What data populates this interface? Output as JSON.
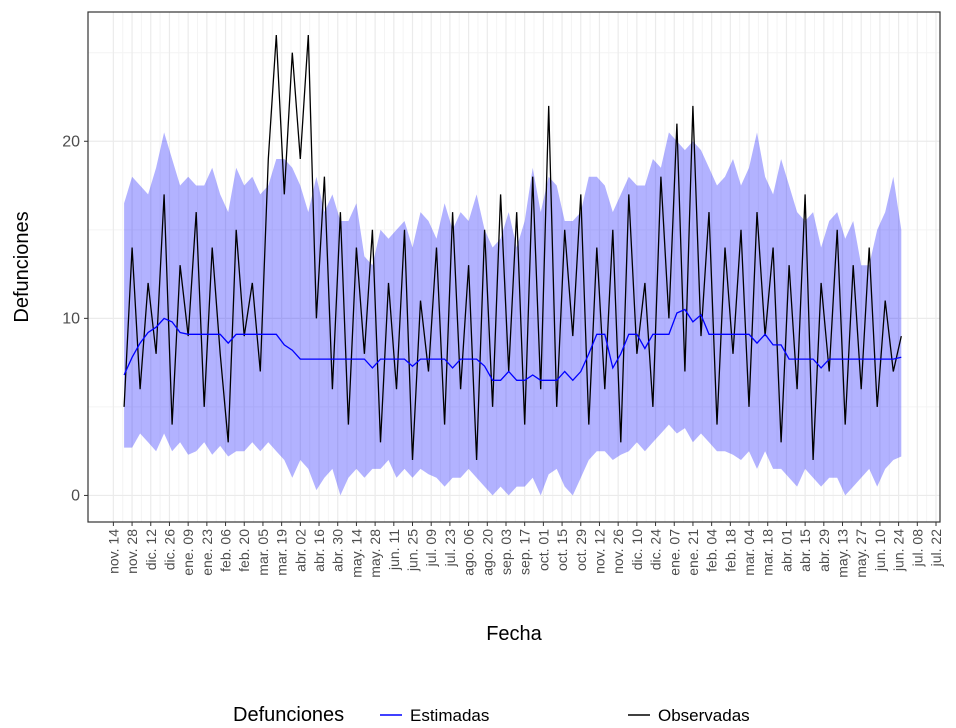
{
  "chart_data": {
    "type": "line",
    "x_label": "Fecha",
    "y_label": "Defunciones",
    "legend_title": "Defunciones",
    "legend_position": "bottom",
    "grid": true,
    "xlim": [
      -19,
      619
    ],
    "ylim": [
      -1.5,
      27.3
    ],
    "xticks": [
      {
        "value": 0,
        "label": "nov. 14"
      },
      {
        "value": 14,
        "label": "nov. 28"
      },
      {
        "value": 28,
        "label": "dic. 12"
      },
      {
        "value": 42,
        "label": "dic. 26"
      },
      {
        "value": 56,
        "label": "ene. 09"
      },
      {
        "value": 70,
        "label": "ene. 23"
      },
      {
        "value": 84,
        "label": "feb. 06"
      },
      {
        "value": 98,
        "label": "feb. 20"
      },
      {
        "value": 112,
        "label": "mar. 05"
      },
      {
        "value": 126,
        "label": "mar. 19"
      },
      {
        "value": 140,
        "label": "abr. 02"
      },
      {
        "value": 154,
        "label": "abr. 16"
      },
      {
        "value": 168,
        "label": "abr. 30"
      },
      {
        "value": 182,
        "label": "may. 14"
      },
      {
        "value": 196,
        "label": "may. 28"
      },
      {
        "value": 210,
        "label": "jun. 11"
      },
      {
        "value": 224,
        "label": "jun. 25"
      },
      {
        "value": 238,
        "label": "jul. 09"
      },
      {
        "value": 252,
        "label": "jul. 23"
      },
      {
        "value": 266,
        "label": "ago. 06"
      },
      {
        "value": 280,
        "label": "ago. 20"
      },
      {
        "value": 294,
        "label": "sep. 03"
      },
      {
        "value": 308,
        "label": "sep. 17"
      },
      {
        "value": 322,
        "label": "oct. 01"
      },
      {
        "value": 336,
        "label": "oct. 15"
      },
      {
        "value": 350,
        "label": "oct. 29"
      },
      {
        "value": 364,
        "label": "nov. 12"
      },
      {
        "value": 378,
        "label": "nov. 26"
      },
      {
        "value": 392,
        "label": "dic. 10"
      },
      {
        "value": 406,
        "label": "dic. 24"
      },
      {
        "value": 420,
        "label": "ene. 07"
      },
      {
        "value": 434,
        "label": "ene. 21"
      },
      {
        "value": 448,
        "label": "feb. 04"
      },
      {
        "value": 462,
        "label": "feb. 18"
      },
      {
        "value": 476,
        "label": "mar. 04"
      },
      {
        "value": 490,
        "label": "mar. 18"
      },
      {
        "value": 504,
        "label": "abr. 01"
      },
      {
        "value": 518,
        "label": "abr. 15"
      },
      {
        "value": 532,
        "label": "abr. 29"
      },
      {
        "value": 546,
        "label": "may. 13"
      },
      {
        "value": 560,
        "label": "may. 27"
      },
      {
        "value": 574,
        "label": "jun. 10"
      },
      {
        "value": 588,
        "label": "jun. 24"
      },
      {
        "value": 602,
        "label": "jul. 08"
      },
      {
        "value": 616,
        "label": "jul. 22"
      }
    ],
    "yticks": [
      0,
      10,
      20
    ],
    "y_minor_ticks": [
      5,
      15,
      25
    ],
    "x": [
      8,
      14,
      20,
      26,
      32,
      38,
      44,
      50,
      56,
      62,
      68,
      74,
      80,
      86,
      92,
      98,
      104,
      110,
      116,
      122,
      128,
      134,
      140,
      146,
      152,
      158,
      164,
      170,
      176,
      182,
      188,
      194,
      200,
      206,
      212,
      218,
      224,
      230,
      236,
      242,
      248,
      254,
      260,
      266,
      272,
      278,
      284,
      290,
      296,
      302,
      308,
      314,
      320,
      326,
      332,
      338,
      344,
      350,
      356,
      362,
      368,
      374,
      380,
      386,
      392,
      398,
      404,
      410,
      416,
      422,
      428,
      434,
      440,
      446,
      452,
      458,
      464,
      470,
      476,
      482,
      488,
      494,
      500,
      506,
      512,
      518,
      524,
      530,
      536,
      542,
      548,
      554,
      560,
      566,
      572,
      578,
      584,
      590
    ],
    "band": {
      "color": "#0000ff",
      "opacity": 0.3,
      "lower": [
        2.7,
        2.7,
        3.5,
        3,
        2.5,
        3.5,
        2.5,
        3,
        2.3,
        2.5,
        3,
        2.3,
        2.8,
        2.2,
        2.5,
        2.5,
        3,
        2.5,
        3,
        2.5,
        2,
        1,
        2,
        1.5,
        0.3,
        1,
        1.5,
        0,
        1,
        1.5,
        1,
        1.5,
        1.5,
        2,
        1,
        1.5,
        1,
        1.5,
        1.2,
        1,
        0.5,
        1,
        1,
        1.5,
        1,
        0.5,
        0,
        0.5,
        0,
        0.5,
        0.5,
        1,
        0,
        1.2,
        1.5,
        0.5,
        0,
        1,
        2,
        2.5,
        2.5,
        2,
        2.3,
        2.5,
        3,
        2.5,
        3,
        3.5,
        4,
        3.5,
        3.8,
        3,
        3.5,
        3,
        2.5,
        2.5,
        2.3,
        2,
        2.5,
        1.5,
        2.5,
        1.5,
        1.5,
        1,
        0.5,
        1.5,
        1,
        0.5,
        1,
        1,
        0,
        0.5,
        1,
        1.5,
        0.5,
        1.5,
        2,
        2.2
      ],
      "upper": [
        16.5,
        18,
        17.5,
        17,
        18.5,
        20.5,
        19,
        17.5,
        18,
        17.5,
        17.5,
        18.5,
        17,
        16,
        18.5,
        17.5,
        18,
        17,
        17.5,
        19,
        19,
        18.5,
        17.5,
        16,
        18,
        16,
        17,
        15.5,
        15.5,
        16.5,
        13.5,
        13,
        15,
        14.5,
        15,
        15.5,
        14,
        16,
        15.5,
        14.5,
        16.5,
        15,
        16,
        15.5,
        17,
        15,
        14,
        14.5,
        16,
        14,
        15.5,
        18.5,
        16,
        18,
        17.5,
        15.5,
        15.5,
        16,
        18,
        18,
        17.5,
        16,
        17,
        18,
        17.5,
        17.5,
        19,
        18.5,
        20.5,
        20,
        19.5,
        20,
        19.5,
        18.5,
        17.5,
        18,
        19,
        17.5,
        18.5,
        20.5,
        18,
        17,
        19,
        17.5,
        16,
        15.5,
        16,
        14,
        15.5,
        16,
        14.5,
        15.5,
        13,
        13,
        15,
        16,
        18,
        15
      ]
    },
    "series": [
      {
        "name": "Estimadas",
        "color": "#0000ff",
        "values": [
          6.8,
          7.8,
          8.6,
          9.2,
          9.5,
          10,
          9.8,
          9.2,
          9.1,
          9.1,
          9.1,
          9.1,
          9.1,
          8.6,
          9.1,
          9.1,
          9.1,
          9.1,
          9.1,
          9.1,
          8.5,
          8.2,
          7.7,
          7.7,
          7.7,
          7.7,
          7.7,
          7.7,
          7.7,
          7.7,
          7.7,
          7.2,
          7.7,
          7.7,
          7.7,
          7.7,
          7.3,
          7.7,
          7.7,
          7.7,
          7.7,
          7.2,
          7.7,
          7.7,
          7.7,
          7.3,
          6.5,
          6.5,
          7,
          6.5,
          6.5,
          6.8,
          6.5,
          6.5,
          6.5,
          7,
          6.5,
          7,
          8,
          9.1,
          9.1,
          7.2,
          8,
          9.1,
          9.1,
          8.3,
          9.1,
          9.1,
          9.1,
          10.3,
          10.5,
          9.8,
          10.2,
          9.1,
          9.1,
          9.1,
          9.1,
          9.1,
          9.1,
          8.6,
          9.1,
          8.5,
          8.5,
          7.7,
          7.7,
          7.7,
          7.7,
          7.2,
          7.7,
          7.7,
          7.7,
          7.7,
          7.7,
          7.7,
          7.7,
          7.7,
          7.7,
          7.8
        ]
      },
      {
        "name": "Observadas",
        "color": "#000000",
        "values": [
          5,
          14,
          6,
          12,
          8,
          17,
          4,
          13,
          9,
          16,
          5,
          14,
          8,
          3,
          15,
          9,
          12,
          7,
          19,
          26,
          17,
          25,
          19,
          26,
          10,
          18,
          6,
          16,
          4,
          14,
          8,
          15,
          3,
          12,
          6,
          15,
          2,
          11,
          7,
          14,
          4,
          16,
          6,
          13,
          2,
          15,
          5,
          17,
          7,
          16,
          4,
          18,
          6,
          22,
          5,
          15,
          9,
          17,
          4,
          14,
          6,
          15,
          3,
          17,
          8,
          12,
          5,
          18,
          10,
          21,
          7,
          22,
          9,
          16,
          4,
          14,
          8,
          15,
          5,
          16,
          9,
          14,
          3,
          13,
          6,
          17,
          2,
          12,
          7,
          15,
          4,
          13,
          6,
          14,
          5,
          11,
          7,
          9
        ]
      }
    ]
  }
}
